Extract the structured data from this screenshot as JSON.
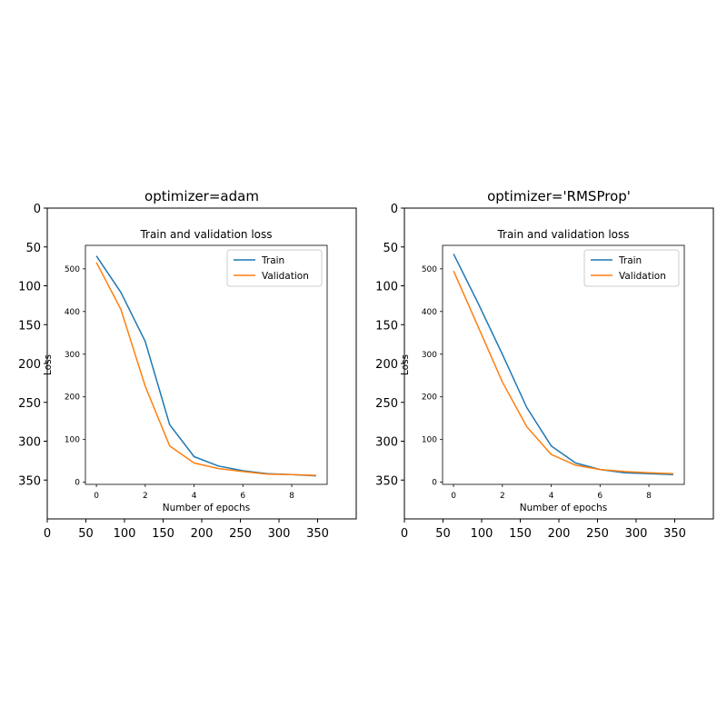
{
  "colors": {
    "train": "#1f77b4",
    "validation": "#ff7f0e",
    "axis": "#000000",
    "background": "#ffffff"
  },
  "chart_data": [
    {
      "type": "line",
      "title": "optimizer=adam",
      "outer_axes": {
        "x_ticks": [
          0,
          50,
          100,
          150,
          200,
          250,
          300,
          350
        ],
        "y_ticks": [
          0,
          50,
          100,
          150,
          200,
          250,
          300,
          350
        ],
        "xlim": [
          0,
          400
        ],
        "ylim": [
          400,
          0
        ],
        "y_inverted": true
      },
      "inner_plot": {
        "title": "Train and validation loss",
        "xlabel": "Number of epochs",
        "ylabel": "Loss",
        "x_ticks": [
          0,
          2,
          4,
          6,
          8
        ],
        "y_ticks": [
          0,
          100,
          200,
          300,
          400,
          500
        ],
        "xlim": [
          -0.45,
          9.45
        ],
        "ylim": [
          -5,
          555
        ],
        "legend": "top-right",
        "series": [
          {
            "name": "Train",
            "x": [
              0,
              1,
              2,
              3,
              4,
              5,
              6,
              7,
              8,
              9
            ],
            "y": [
              530,
              445,
              330,
              135,
              60,
              38,
              27,
              20,
              18,
              15
            ]
          },
          {
            "name": "Validation",
            "x": [
              0,
              1,
              2,
              3,
              4,
              5,
              6,
              7,
              8,
              9
            ],
            "y": [
              515,
              405,
              225,
              85,
              45,
              32,
              25,
              19,
              18,
              16
            ]
          }
        ]
      }
    },
    {
      "type": "line",
      "title": "optimizer='RMSProp'",
      "outer_axes": {
        "x_ticks": [
          0,
          50,
          100,
          150,
          200,
          250,
          300,
          350
        ],
        "y_ticks": [
          0,
          50,
          100,
          150,
          200,
          250,
          300,
          350
        ],
        "xlim": [
          0,
          400
        ],
        "ylim": [
          400,
          0
        ],
        "y_inverted": true
      },
      "inner_plot": {
        "title": "Train and validation loss",
        "xlabel": "Number of epochs",
        "ylabel": "Loss",
        "x_ticks": [
          0,
          2,
          4,
          6,
          8
        ],
        "y_ticks": [
          0,
          100,
          200,
          300,
          400,
          500
        ],
        "xlim": [
          -0.45,
          9.45
        ],
        "ylim": [
          -5,
          555
        ],
        "legend": "top-right",
        "series": [
          {
            "name": "Train",
            "x": [
              0,
              1,
              2,
              3,
              4,
              5,
              6,
              7,
              8,
              9
            ],
            "y": [
              535,
              420,
              300,
              175,
              85,
              45,
              30,
              22,
              20,
              18
            ]
          },
          {
            "name": "Validation",
            "x": [
              0,
              1,
              2,
              3,
              4,
              5,
              6,
              7,
              8,
              9
            ],
            "y": [
              495,
              365,
              235,
              130,
              65,
              40,
              30,
              25,
              22,
              20
            ]
          }
        ]
      }
    }
  ]
}
